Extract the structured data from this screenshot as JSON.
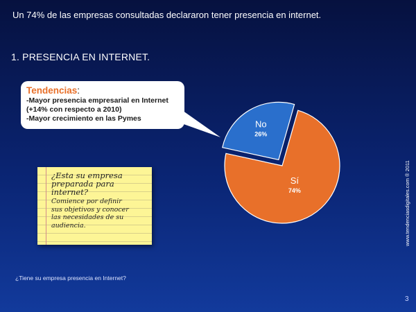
{
  "headline": "Un 74% de las empresas consultadas declararon tener presencia en internet.",
  "section_title": "1. PRESENCIA EN INTERNET.",
  "callout": {
    "title": "Tendencias",
    "colon": ":",
    "lines": [
      "-Mayor presencia empresarial en Internet",
      "(+14% con respecto a 2010)",
      "-Mayor crecimiento en las Pymes"
    ]
  },
  "note": {
    "question_lines": [
      "¿Esta su empresa",
      "preparada para",
      "internet?"
    ],
    "advice_lines": [
      "Comience por definir",
      "sus objetivos y conocer",
      "las necesidades de su",
      "audiencia."
    ]
  },
  "footer_question": "¿Tiene su empresa presencia en Internet?",
  "side_url": "www.tendenciasdigitales.com ® 2011",
  "page_number": "3",
  "colors": {
    "background_top": "#06113f",
    "background_bottom": "#123a9c",
    "slice_si": "#e8702a",
    "slice_no": "#2a6fcc",
    "accent_title": "#e8702a"
  },
  "chart_data": {
    "type": "pie",
    "exploded": "No",
    "slices": [
      {
        "label": "Sí",
        "value": 74,
        "value_label": "74%"
      },
      {
        "label": "No",
        "value": 26,
        "value_label": "26%"
      }
    ],
    "legend": "none"
  }
}
